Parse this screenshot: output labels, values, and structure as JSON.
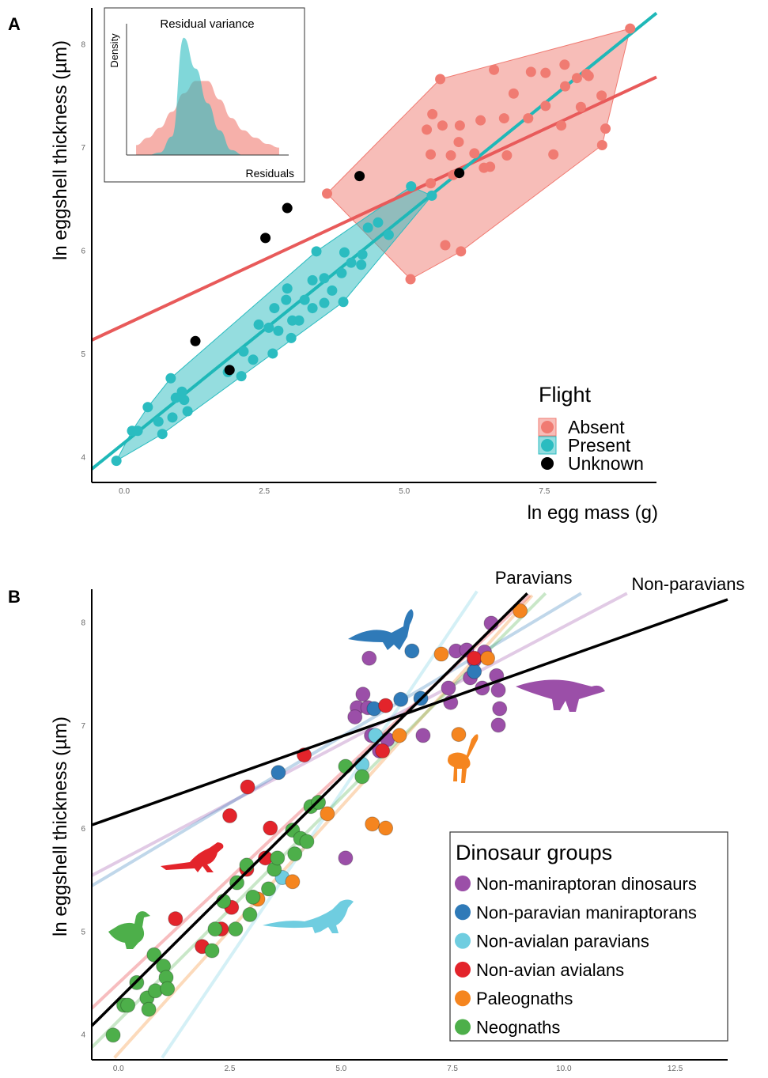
{
  "chart_data": [
    {
      "type": "scatter",
      "panel": "A",
      "ylabel": "ln eggshell thickness (µm)",
      "xlabel": "ln egg mass (g)",
      "xlim": [
        -0.58,
        9.5
      ],
      "ylim": [
        3.75,
        8.35
      ],
      "xticks": [
        {
          "value": 0,
          "label": "0.0"
        },
        {
          "value": 2.5,
          "label": "2.5"
        },
        {
          "value": 5,
          "label": "5.0"
        },
        {
          "value": 7.5,
          "label": "7.5"
        }
      ],
      "yticks": [
        4,
        5,
        6,
        7,
        8
      ],
      "hull": true,
      "legend_title": "Flight",
      "legend": "bottom-right",
      "series": [
        {
          "name": "Absent",
          "color": "#f07b72",
          "fit": {
            "color": "#e85a5a",
            "x": [
              -0.58,
              9.5
            ],
            "y": [
              5.13,
              7.68
            ]
          },
          "x": [
            3.62,
            5.64,
            6.6,
            9.03,
            5.11,
            6.01,
            5.73,
            5.47,
            5.87,
            6.53,
            6.83,
            7.66,
            8.53,
            8.59,
            8.52,
            8.15,
            8.29,
            7.86,
            7.52,
            7.26,
            8.08,
            7.87,
            7.52,
            7.8,
            7.21,
            6.78,
            6.36,
            5.99,
            5.68,
            5.5,
            5.4,
            5.47,
            5.83,
            6.25,
            6.42,
            5.97,
            6.95,
            8.25
          ],
          "values": [
            6.55,
            7.66,
            7.75,
            8.15,
            5.72,
            5.99,
            6.05,
            6.65,
            6.73,
            6.81,
            6.92,
            6.93,
            7.02,
            7.18,
            7.5,
            7.39,
            7.69,
            7.8,
            7.72,
            7.73,
            7.67,
            7.59,
            7.4,
            7.21,
            7.28,
            7.28,
            7.26,
            7.21,
            7.21,
            7.32,
            7.17,
            6.93,
            6.92,
            6.94,
            6.8,
            7.05,
            7.52,
            7.71
          ]
        },
        {
          "name": "Present",
          "color": "#2bbcc0",
          "fit": {
            "color": "#1fb8b8",
            "x": [
              -0.58,
              9.5
            ],
            "y": [
              3.88,
              8.3
            ]
          },
          "x": [
            -0.14,
            0.14,
            0.24,
            0.42,
            0.68,
            0.61,
            0.83,
            0.86,
            0.92,
            1.03,
            1.07,
            1.13,
            1.85,
            2.09,
            2.13,
            2.3,
            2.4,
            2.58,
            2.65,
            2.68,
            2.75,
            2.89,
            2.91,
            2.98,
            3.0,
            3.12,
            3.22,
            3.36,
            3.36,
            3.43,
            3.57,
            3.57,
            3.71,
            3.88,
            3.91,
            3.93,
            4.05,
            4.23,
            4.25,
            4.35,
            4.53,
            4.72,
            5.12,
            5.49
          ],
          "values": [
            3.96,
            4.25,
            4.25,
            4.48,
            4.22,
            4.34,
            4.76,
            4.38,
            4.57,
            4.63,
            4.55,
            4.44,
            4.82,
            4.78,
            5.02,
            4.94,
            5.28,
            5.25,
            5.0,
            5.44,
            5.22,
            5.52,
            5.63,
            5.15,
            5.32,
            5.32,
            5.52,
            5.44,
            5.71,
            5.99,
            5.73,
            5.49,
            5.61,
            5.78,
            5.5,
            5.98,
            5.88,
            5.86,
            5.96,
            6.22,
            6.27,
            6.15,
            6.62,
            6.53
          ]
        },
        {
          "name": "Unknown",
          "color": "#000000",
          "x": [
            1.27,
            1.88,
            2.52,
            2.91,
            4.2,
            5.98
          ],
          "values": [
            5.12,
            4.84,
            6.12,
            6.41,
            6.72,
            6.75
          ]
        }
      ]
    },
    {
      "type": "scatter",
      "panel": "B",
      "ylabel": "ln eggshell thickness (µm)",
      "xlim": [
        -0.6,
        13.68
      ],
      "ylim": [
        3.75,
        8.32
      ],
      "xticks": [
        {
          "value": 0,
          "label": "0.0"
        },
        {
          "value": 2.5,
          "label": "2.5"
        },
        {
          "value": 5,
          "label": "5.0"
        },
        {
          "value": 7.5,
          "label": "7.5"
        },
        {
          "value": 10,
          "label": "10.0"
        },
        {
          "value": 12.5,
          "label": "12.5"
        }
      ],
      "yticks": [
        4,
        5,
        6,
        7,
        8
      ],
      "hull": false,
      "legend_title": "Dinosaur groups",
      "legend": "bottom-right",
      "lines": [
        {
          "name": "Paravians",
          "color": "#000000",
          "x": [
            -0.6,
            9.18
          ],
          "y": [
            4.08,
            8.28
          ]
        },
        {
          "name": "Non-paravians",
          "color": "#000000",
          "x": [
            -0.6,
            13.68
          ],
          "y": [
            6.03,
            8.22
          ]
        }
      ],
      "series": [
        {
          "name": "Non-maniraptoran dinosaurs",
          "color": "#9b4fa8",
          "fit": {
            "color": "#9b4fa8",
            "x": [
              -0.6,
              11.42
            ],
            "y": [
              5.54,
              8.28
            ]
          },
          "x": [
            5.63,
            5.49,
            5.36,
            5.31,
            5.6,
            5.68,
            5.86,
            6.84,
            5.1,
            8.37,
            7.58,
            7.82,
            7.99,
            7.9,
            8.17,
            8.49,
            8.53,
            8.56,
            8.53,
            7.46,
            7.41,
            6.04,
            8.22
          ],
          "values": [
            7.65,
            7.3,
            7.17,
            7.08,
            7.17,
            6.9,
            6.75,
            6.9,
            5.71,
            7.99,
            7.72,
            7.73,
            7.63,
            7.46,
            7.36,
            7.48,
            7.34,
            7.16,
            7.0,
            7.22,
            7.36,
            6.86,
            7.71
          ]
        },
        {
          "name": "Non-paravian maniraptorans",
          "color": "#2f7ab8",
          "fit": {
            "color": "#2f7ab8",
            "x": [
              -0.6,
              10.39
            ],
            "y": [
              5.44,
              8.28
            ]
          },
          "x": [
            3.59,
            5.74,
            6.34,
            6.59,
            6.79,
            7.99
          ],
          "values": [
            6.54,
            7.16,
            7.25,
            7.72,
            7.26,
            7.52
          ]
        },
        {
          "name": "Non-avialan paravians",
          "color": "#6fcde0",
          "fit": {
            "color": "#6fcde0",
            "x": [
              0.98,
              8.05
            ],
            "y": [
              3.77,
              8.3
            ]
          },
          "x": [
            3.68,
            5.47,
            5.77
          ],
          "values": [
            5.52,
            6.62,
            6.9
          ]
        },
        {
          "name": "Non-avian avialans",
          "color": "#e3242b",
          "fit": {
            "color": "#e3242b",
            "x": [
              -0.6,
              9.24
            ],
            "y": [
              4.25,
              8.26
            ]
          },
          "x": [
            1.28,
            1.88,
            2.31,
            2.54,
            2.5,
            2.9,
            2.88,
            3.3,
            3.41,
            4.17,
            6.0,
            5.93,
            7.99
          ],
          "values": [
            5.12,
            4.85,
            5.02,
            5.23,
            6.12,
            6.4,
            5.6,
            5.71,
            6.0,
            6.71,
            7.19,
            6.75,
            7.65
          ]
        },
        {
          "name": "Paleognaths",
          "color": "#f5851f",
          "fit": {
            "color": "#f5851f",
            "x": [
              -0.09,
              9.29
            ],
            "y": [
              3.77,
              8.26
            ]
          },
          "x": [
            9.02,
            7.25,
            8.29,
            7.64,
            6.31,
            5.7,
            6.0,
            4.69,
            3.91,
            3.13
          ],
          "values": [
            8.11,
            7.69,
            7.65,
            6.91,
            6.9,
            6.04,
            6.0,
            6.14,
            5.48,
            5.31
          ]
        },
        {
          "name": "Neognaths",
          "color": "#4daf4a",
          "fit": {
            "color": "#4daf4a",
            "x": [
              -0.6,
              9.59
            ],
            "y": [
              3.87,
              8.28
            ]
          },
          "x": [
            -0.12,
            0.12,
            0.21,
            0.41,
            0.64,
            0.68,
            0.83,
            0.8,
            1.01,
            1.07,
            1.1,
            2.1,
            2.17,
            2.36,
            2.63,
            2.66,
            2.88,
            2.95,
            3.02,
            3.37,
            3.5,
            3.57,
            3.91,
            3.96,
            4.09,
            4.23,
            4.32,
            4.49,
            5.1,
            5.47
          ],
          "values": [
            3.99,
            4.28,
            4.28,
            4.5,
            4.35,
            4.24,
            4.42,
            4.77,
            4.66,
            4.55,
            4.44,
            4.81,
            5.02,
            5.29,
            5.02,
            5.47,
            5.64,
            5.16,
            5.33,
            5.41,
            5.6,
            5.71,
            5.98,
            5.75,
            5.9,
            5.87,
            6.21,
            6.25,
            6.6,
            6.5
          ]
        }
      ]
    },
    {
      "type": "density",
      "title": "Residual variance",
      "ylabel": "Density",
      "xlabel": "Residuals",
      "xlim": [
        -3.4,
        3.4
      ],
      "ylim": [
        0,
        1
      ],
      "x": [
        -3,
        -2.5,
        -2,
        -1.5,
        -1,
        -0.5,
        0,
        0.5,
        1,
        1.5,
        2,
        2.5,
        3
      ],
      "series": [
        {
          "color": "#f07b72",
          "values": [
            0.08,
            0.14,
            0.22,
            0.35,
            0.5,
            0.6,
            0.6,
            0.45,
            0.3,
            0.2,
            0.14,
            0.09,
            0.06
          ]
        },
        {
          "color": "#2bbcc0",
          "values": [
            0,
            0,
            0.02,
            0.15,
            0.95,
            0.7,
            0.42,
            0.2,
            0.04,
            0,
            0,
            0,
            0
          ]
        }
      ]
    }
  ]
}
